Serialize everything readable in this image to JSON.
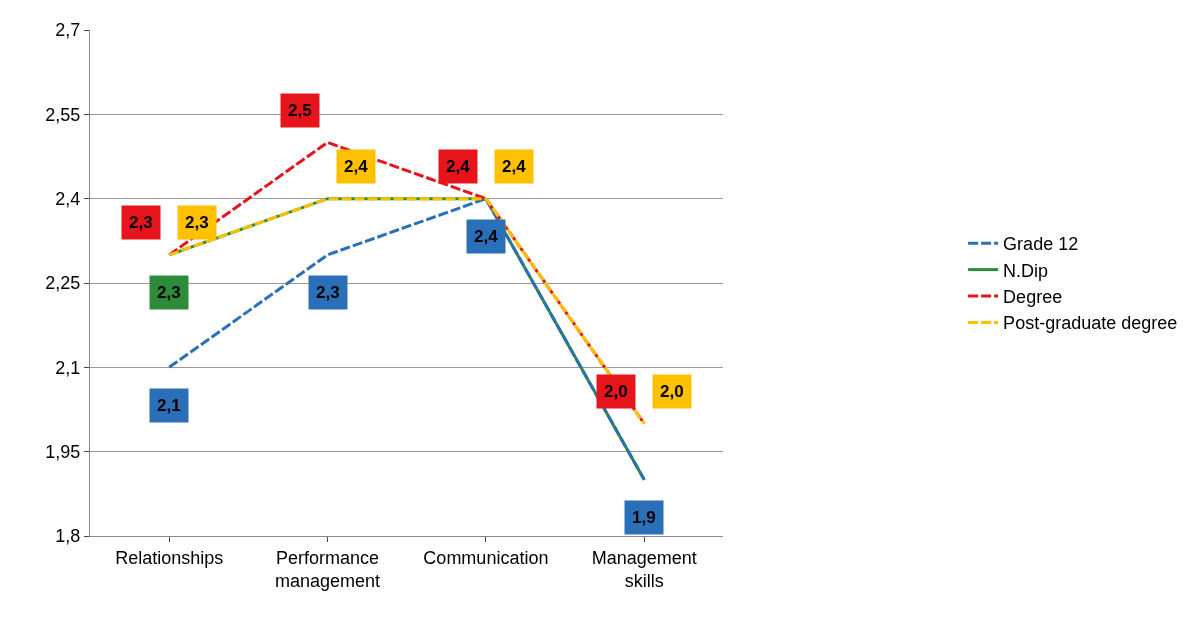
{
  "chart_data": {
    "type": "line",
    "categories": [
      "Relationships",
      "Performance management",
      "Communication",
      "Management skills"
    ],
    "series": [
      {
        "name": "Grade 12",
        "color": "#2a70b8",
        "line_style": "dashed",
        "values": [
          2.1,
          2.3,
          2.4,
          1.9
        ],
        "value_labels": [
          "2,1",
          "2,3",
          "2,4",
          "1,9"
        ]
      },
      {
        "name": "N.Dip",
        "color": "#2e8b3a",
        "line_style": "solid",
        "values": [
          2.3,
          2.4,
          2.4,
          1.9
        ],
        "value_labels": [
          "2,3",
          null,
          null,
          null
        ]
      },
      {
        "name": "Degree",
        "color": "#e8141b",
        "line_style": "dashed",
        "values": [
          2.3,
          2.5,
          2.4,
          2.0
        ],
        "value_labels": [
          "2,3",
          "2,5",
          "2,4",
          "2,0"
        ]
      },
      {
        "name": "Post-graduate degree",
        "color": "#ffc000",
        "line_style": "dashed",
        "values": [
          2.3,
          2.4,
          2.4,
          2.0
        ],
        "value_labels": [
          "2,3",
          "2,4",
          "2,4",
          "2,0"
        ]
      }
    ],
    "ylim": [
      1.8,
      2.7
    ],
    "yticks": [
      {
        "value": 1.8,
        "label": "1,8"
      },
      {
        "value": 1.95,
        "label": "1,95"
      },
      {
        "value": 2.1,
        "label": "2,1"
      },
      {
        "value": 2.25,
        "label": "2,25"
      },
      {
        "value": 2.4,
        "label": "2,4"
      },
      {
        "value": 2.55,
        "label": "2,55"
      },
      {
        "value": 2.7,
        "label": "2,7"
      }
    ],
    "grid": "y",
    "legend": "right",
    "marker": "none"
  }
}
